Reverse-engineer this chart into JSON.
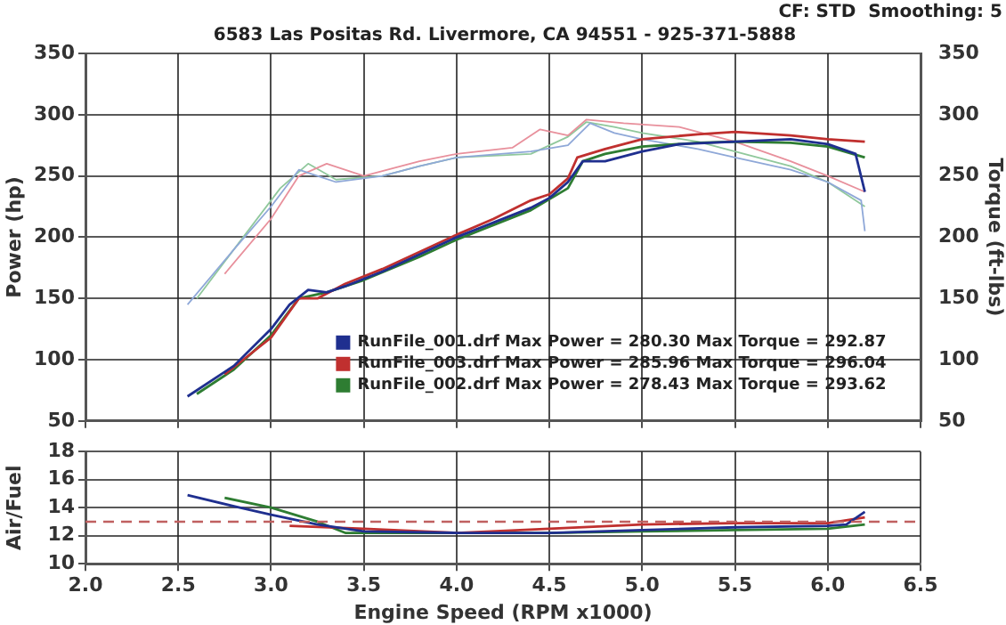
{
  "chart_data": [
    {
      "type": "line",
      "title": "6583 Las Positas Rd. Livermore, CA 94551 - 925-371-5888",
      "ylabel": "Power (hp)",
      "y2label": "Torque (ft-lbs)",
      "annotations": [
        "CF: STD  Smoothing: 5"
      ],
      "xlim": [
        2.0,
        6.5
      ],
      "xticks": [
        2.0,
        2.5,
        3.0,
        3.5,
        4.0,
        4.5,
        5.0,
        5.5,
        6.0,
        6.5
      ],
      "ylim": [
        50,
        350
      ],
      "yticks": [
        50,
        100,
        150,
        200,
        250,
        300,
        350
      ],
      "y2lim": [
        50,
        350
      ],
      "y2ticks": [
        50,
        100,
        150,
        200,
        250,
        300,
        350
      ],
      "tick_labels": "y",
      "grid": true,
      "legend": "bottom",
      "marker": "none",
      "series": [
        {
          "name": "RunFile_001.drf Max Power = 280.30 Max Torque = 292.87",
          "color": "#1f2f8f",
          "x": [
            2.55,
            2.8,
            3.0,
            3.1,
            3.2,
            3.3,
            3.4,
            3.6,
            3.8,
            4.0,
            4.2,
            4.4,
            4.5,
            4.6,
            4.68,
            4.8,
            5.0,
            5.2,
            5.5,
            5.8,
            6.0,
            6.15,
            6.2
          ],
          "values": [
            70,
            95,
            125,
            145,
            157,
            155,
            160,
            172,
            186,
            200,
            212,
            224,
            232,
            245,
            262,
            262,
            270,
            276,
            278,
            280,
            276,
            268,
            237
          ]
        },
        {
          "name": "RunFile_003.drf Max Power = 285.96 Max Torque = 296.04",
          "color": "#c0302f",
          "x": [
            2.75,
            3.0,
            3.15,
            3.25,
            3.4,
            3.6,
            3.8,
            4.0,
            4.2,
            4.4,
            4.5,
            4.6,
            4.65,
            4.8,
            5.0,
            5.3,
            5.5,
            5.8,
            6.0,
            6.2
          ],
          "values": [
            88,
            118,
            150,
            150,
            162,
            174,
            188,
            202,
            215,
            230,
            235,
            248,
            265,
            272,
            280,
            284,
            286,
            283,
            280,
            278
          ]
        },
        {
          "name": "RunFile_002.drf Max Power = 278.43 Max Torque = 293.62",
          "color": "#2e7d32",
          "x": [
            2.6,
            2.8,
            3.0,
            3.15,
            3.3,
            3.5,
            3.8,
            4.0,
            4.2,
            4.4,
            4.6,
            4.68,
            4.8,
            5.0,
            5.3,
            5.5,
            5.8,
            6.0,
            6.2
          ],
          "values": [
            72,
            92,
            120,
            150,
            155,
            165,
            184,
            198,
            210,
            222,
            240,
            262,
            268,
            274,
            277,
            278,
            277,
            274,
            265
          ]
        },
        {
          "color": "#8fa8d8",
          "axis": "y2",
          "x": [
            2.55,
            2.8,
            3.0,
            3.15,
            3.25,
            3.35,
            3.6,
            3.8,
            4.0,
            4.4,
            4.6,
            4.72,
            4.85,
            5.0,
            5.3,
            5.5,
            5.8,
            6.0,
            6.18,
            6.2
          ],
          "values": [
            145,
            190,
            225,
            255,
            250,
            245,
            250,
            258,
            265,
            270,
            275,
            293,
            285,
            280,
            272,
            265,
            255,
            245,
            230,
            205
          ]
        },
        {
          "color": "#e8909c",
          "axis": "y2",
          "x": [
            2.75,
            3.0,
            3.15,
            3.3,
            3.5,
            3.8,
            4.0,
            4.3,
            4.45,
            4.6,
            4.7,
            4.9,
            5.2,
            5.5,
            5.8,
            6.0,
            6.2
          ],
          "values": [
            170,
            215,
            250,
            260,
            250,
            262,
            268,
            273,
            288,
            283,
            296,
            293,
            290,
            278,
            262,
            250,
            237
          ]
        },
        {
          "color": "#90c89c",
          "axis": "y2",
          "x": [
            2.6,
            2.85,
            3.05,
            3.2,
            3.35,
            3.6,
            3.8,
            4.0,
            4.4,
            4.6,
            4.7,
            4.85,
            5.0,
            5.3,
            5.5,
            5.8,
            6.0,
            6.2
          ],
          "values": [
            150,
            200,
            240,
            260,
            247,
            250,
            258,
            265,
            268,
            282,
            294,
            290,
            285,
            278,
            270,
            258,
            245,
            225
          ]
        }
      ]
    },
    {
      "type": "line",
      "xlabel": "Engine Speed (RPM x1000)",
      "ylabel": "Air/Fuel",
      "xlim": [
        2.0,
        6.5
      ],
      "xticks": [
        {
          "value": 2,
          "label": "2.0"
        },
        2.5,
        {
          "value": 3,
          "label": "3.0"
        },
        3.5,
        {
          "value": 4,
          "label": "4.0"
        },
        4.5,
        {
          "value": 5,
          "label": "5.0"
        },
        5.5,
        {
          "value": 6,
          "label": "6.0"
        },
        6.5
      ],
      "ylim": [
        10,
        18
      ],
      "yticks": [
        10,
        12,
        14,
        16,
        18
      ],
      "grid": true,
      "marker": "none",
      "ref_lines": [
        {
          "axis": "y",
          "value": 13,
          "color": "#c06060",
          "line_style": "dashed"
        }
      ],
      "series": [
        {
          "color": "#1f2f8f",
          "x": [
            2.55,
            2.8,
            3.0,
            3.25,
            3.5,
            4.0,
            4.5,
            5.0,
            5.5,
            6.0,
            6.1,
            6.2
          ],
          "values": [
            14.9,
            14.1,
            13.5,
            12.8,
            12.3,
            12.2,
            12.2,
            12.4,
            12.6,
            12.7,
            12.8,
            13.7
          ]
        },
        {
          "color": "#c0302f",
          "x": [
            3.1,
            3.5,
            4.0,
            4.5,
            5.0,
            5.5,
            6.0,
            6.2
          ],
          "values": [
            12.7,
            12.5,
            12.2,
            12.5,
            12.8,
            12.9,
            12.9,
            13.3
          ]
        },
        {
          "color": "#2e7d32",
          "x": [
            2.75,
            3.0,
            3.25,
            3.4,
            4.0,
            4.5,
            5.0,
            5.5,
            6.0,
            6.2
          ],
          "values": [
            14.7,
            14.0,
            13.0,
            12.2,
            12.2,
            12.2,
            12.3,
            12.4,
            12.5,
            12.8
          ]
        }
      ]
    }
  ]
}
